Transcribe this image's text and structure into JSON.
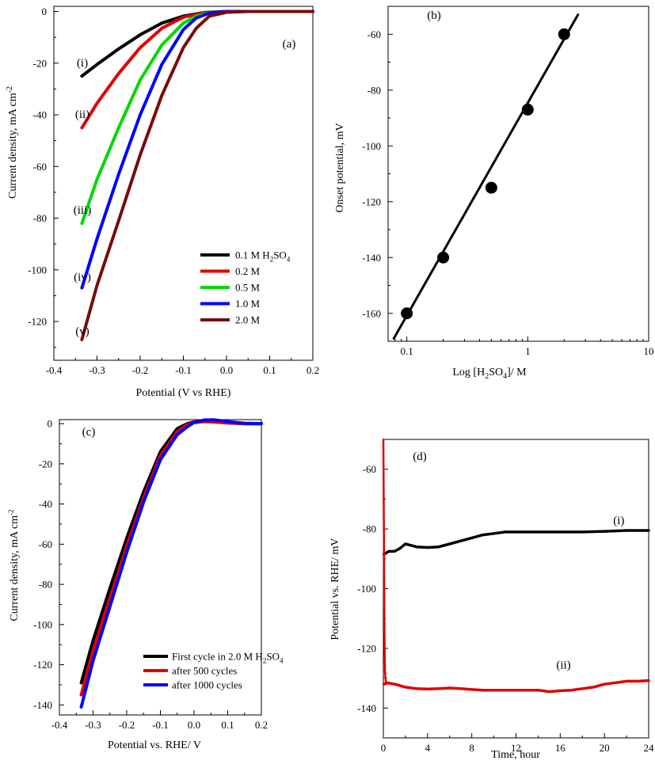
{
  "chart_data": [
    {
      "id": "a",
      "type": "line",
      "panel_label": "(a)",
      "xlabel": "Potential (V vs RHE)",
      "ylabel_main": "Current density, mA cm",
      "ylabel_sup": "-2",
      "xlim": [
        -0.4,
        0.2
      ],
      "ylim": [
        -135,
        2
      ],
      "xticks": [
        -0.4,
        -0.3,
        -0.2,
        -0.1,
        0.0,
        0.1,
        0.2
      ],
      "xtick_labels": [
        "-0.4",
        "-0.3",
        "-0.2",
        "-0.1",
        "0.0",
        "0.1",
        "0.2"
      ],
      "yticks": [
        0,
        -20,
        -40,
        -60,
        -80,
        -100,
        -120
      ],
      "ytick_labels": [
        "0",
        "-20",
        "-40",
        "-60",
        "-80",
        "-100",
        "-120"
      ],
      "series": [
        {
          "name": "0.1 M H2SO4",
          "legend_main": "0.1 M H",
          "legend_sub": "2",
          "legend_tail": "SO",
          "legend_sub2": "4",
          "tag": "(i)",
          "color": "#000000",
          "x": [
            -0.335,
            -0.3,
            -0.25,
            -0.2,
            -0.15,
            -0.1,
            -0.05,
            0.0,
            0.05,
            0.1,
            0.2
          ],
          "y": [
            -25,
            -20.5,
            -14.5,
            -9,
            -4.5,
            -1.8,
            -0.4,
            0,
            0,
            0,
            0
          ]
        },
        {
          "name": "0.2 M",
          "legend_main": "0.2 M",
          "tag": "(ii)",
          "color": "#e00000",
          "x": [
            -0.335,
            -0.3,
            -0.25,
            -0.2,
            -0.15,
            -0.1,
            -0.05,
            0.0,
            0.05,
            0.1,
            0.2
          ],
          "y": [
            -45,
            -35.5,
            -24,
            -14,
            -6.5,
            -2.2,
            -0.5,
            0,
            0,
            0,
            0
          ]
        },
        {
          "name": "0.5 M",
          "legend_main": "0.5 M",
          "tag": "(iii)",
          "color": "#00d800",
          "x": [
            -0.335,
            -0.3,
            -0.25,
            -0.2,
            -0.15,
            -0.1,
            -0.07,
            -0.04,
            0.0,
            0.05,
            0.1,
            0.2
          ],
          "y": [
            -82,
            -65,
            -45,
            -26.5,
            -13,
            -4.5,
            -1.8,
            -0.5,
            0,
            0,
            0,
            0
          ]
        },
        {
          "name": "1.0 M",
          "legend_main": "1.0 M",
          "tag": "(iv)",
          "color": "#0000ff",
          "x": [
            -0.335,
            -0.3,
            -0.25,
            -0.2,
            -0.15,
            -0.1,
            -0.07,
            -0.04,
            0.0,
            0.05,
            0.1,
            0.2
          ],
          "y": [
            -107,
            -88,
            -63,
            -40,
            -20.5,
            -7,
            -2.5,
            -0.6,
            0,
            0,
            0,
            0
          ]
        },
        {
          "name": "2.0 M",
          "legend_main": "2.0 M",
          "tag": "(v)",
          "color": "#7a0a0a",
          "x": [
            -0.335,
            -0.3,
            -0.25,
            -0.2,
            -0.15,
            -0.1,
            -0.07,
            -0.04,
            0.0,
            0.05,
            0.1,
            0.2
          ],
          "y": [
            -127,
            -106,
            -81,
            -55.5,
            -32.5,
            -14,
            -6.5,
            -1.8,
            -0.3,
            0,
            0,
            0
          ]
        }
      ],
      "tags_y": [
        -20,
        -40,
        -77,
        -103,
        -124
      ]
    },
    {
      "id": "b",
      "type": "scatter",
      "panel_label": "(b)",
      "xlabel_main": "Log [H",
      "xlabel_sub": "2",
      "xlabel_tail": "SO",
      "xlabel_sub2": "4",
      "xlabel_end": "]/ M",
      "ylabel": "Onset potential, mV",
      "xscale": "log",
      "xlim": [
        0.07,
        10
      ],
      "ylim": [
        -170,
        -50
      ],
      "xticks": [
        0.1,
        1,
        10
      ],
      "xtick_labels": [
        "0.1",
        "1",
        "10"
      ],
      "yticks": [
        -60,
        -80,
        -100,
        -120,
        -140,
        -160
      ],
      "ytick_labels": [
        "-60",
        "-80",
        "-100",
        "-120",
        "-140",
        "-160"
      ],
      "points": {
        "x": [
          0.1,
          0.2,
          0.5,
          1.0,
          2.0
        ],
        "y": [
          -160,
          -140,
          -115,
          -87,
          -60
        ]
      },
      "fit_line": {
        "x": [
          0.078,
          2.6
        ],
        "y": [
          -169,
          -53
        ]
      }
    },
    {
      "id": "c",
      "type": "line",
      "panel_label": "(c)",
      "xlabel": "Potential vs. RHE/ V",
      "ylabel_main": "Current density, mA cm",
      "ylabel_sup": "-2",
      "xlim": [
        -0.4,
        0.2
      ],
      "ylim": [
        -145,
        2
      ],
      "xticks": [
        -0.4,
        -0.3,
        -0.2,
        -0.1,
        0.0,
        0.1,
        0.2
      ],
      "xtick_labels": [
        "-0.4",
        "-0.3",
        "-0.2",
        "-0.1",
        "0.0",
        "0.1",
        "0.2"
      ],
      "yticks": [
        0,
        -20,
        -40,
        -60,
        -80,
        -100,
        -120,
        -140
      ],
      "ytick_labels": [
        "0",
        "-20",
        "-40",
        "-60",
        "-80",
        "-100",
        "-120",
        "-140"
      ],
      "series": [
        {
          "name": "First cycle in 2.0 M H2SO4",
          "legend_main": "First cycle in 2.0 M H",
          "legend_sub": "2",
          "legend_tail": "SO",
          "legend_sub2": "4",
          "color": "#000000",
          "x": [
            -0.335,
            -0.3,
            -0.25,
            -0.2,
            -0.15,
            -0.1,
            -0.05,
            -0.02,
            0.0,
            0.03,
            0.06,
            0.1,
            0.15,
            0.2
          ],
          "y": [
            -129,
            -108,
            -82,
            -57,
            -34,
            -14,
            -2.5,
            0,
            0.8,
            1.2,
            1.0,
            0.4,
            0,
            0
          ]
        },
        {
          "name": "after 500 cycles",
          "legend_main": "after 500 cycles",
          "color": "#e00000",
          "x": [
            -0.335,
            -0.3,
            -0.25,
            -0.2,
            -0.15,
            -0.1,
            -0.05,
            -0.02,
            0.0,
            0.03,
            0.06,
            0.1,
            0.15,
            0.2
          ],
          "y": [
            -135,
            -113,
            -87,
            -61,
            -37,
            -16,
            -4,
            -0.5,
            0.5,
            1.0,
            0.8,
            0.3,
            0,
            0
          ]
        },
        {
          "name": "after 1000 cycles",
          "legend_main": "after 1000 cycles",
          "color": "#0000ff",
          "x": [
            -0.335,
            -0.3,
            -0.25,
            -0.2,
            -0.15,
            -0.1,
            -0.05,
            -0.02,
            0.0,
            0.03,
            0.06,
            0.1,
            0.15,
            0.2
          ],
          "y": [
            -141,
            -118,
            -91,
            -64,
            -39,
            -18,
            -5.5,
            -1.5,
            0.6,
            1.8,
            1.9,
            1.0,
            0.2,
            0
          ]
        }
      ]
    },
    {
      "id": "d",
      "type": "line",
      "panel_label": "(d)",
      "xlabel": "Time, hour",
      "ylabel": "Potential  vs. RHE/ mV",
      "xlim": [
        0,
        24
      ],
      "ylim": [
        -150,
        -50
      ],
      "xticks": [
        0,
        4,
        8,
        12,
        16,
        20,
        24
      ],
      "xtick_labels": [
        "0",
        "4",
        "8",
        "12",
        "16",
        "20",
        "24"
      ],
      "yticks": [
        -60,
        -80,
        -100,
        -120,
        -140
      ],
      "ytick_labels": [
        "-60",
        "-80",
        "-100",
        "-120",
        "-140"
      ],
      "series": [
        {
          "name": "(i)",
          "tag": "(i)",
          "color": "#000000",
          "x": [
            0.05,
            0.5,
            1,
            1.5,
            2,
            2.5,
            3,
            4,
            5,
            6,
            7,
            8,
            9,
            10,
            11,
            12,
            14,
            16,
            18,
            20,
            22,
            24
          ],
          "y": [
            -88.5,
            -87.5,
            -87.5,
            -86.5,
            -85,
            -85.5,
            -86,
            -86.2,
            -86,
            -85,
            -84,
            -83,
            -82,
            -81.5,
            -81,
            -81,
            -81,
            -81,
            -81,
            -80.8,
            -80.5,
            -80.5
          ],
          "tag_xy": [
            21.3,
            -77
          ]
        },
        {
          "name": "(ii)",
          "tag": "(ii)",
          "color": "#e00000",
          "x": [
            0.05,
            0.3,
            1,
            2,
            3,
            4,
            5,
            6,
            7,
            8,
            9,
            10,
            11,
            12,
            13,
            14,
            15,
            16,
            17,
            18,
            19,
            20,
            21,
            22,
            23,
            24
          ],
          "y": [
            -132,
            -131.5,
            -132,
            -133,
            -133.5,
            -133.6,
            -133.5,
            -133.3,
            -133.5,
            -133.8,
            -134,
            -134,
            -134,
            -134,
            -134,
            -134,
            -134.5,
            -134.2,
            -134,
            -133.5,
            -133,
            -132,
            -131.5,
            -131,
            -131,
            -130.8
          ],
          "tag_xy": [
            16.3,
            -125.5
          ]
        },
        {
          "name": "spike",
          "color": "#e00000",
          "x": [
            0.0,
            0.05,
            0.1,
            0.15,
            0.25
          ],
          "y": [
            -50,
            -80,
            -115,
            -128,
            -132
          ]
        }
      ]
    }
  ]
}
